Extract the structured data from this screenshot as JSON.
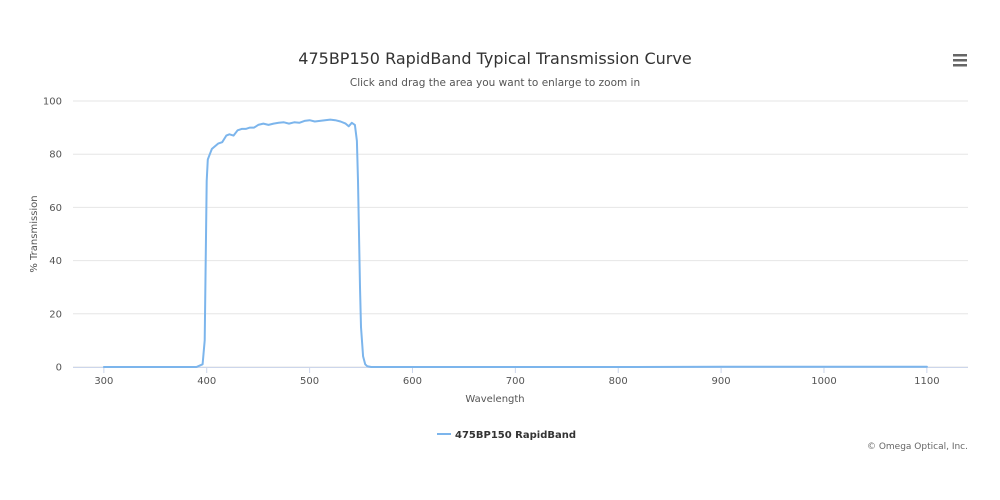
{
  "chart_data": {
    "type": "line",
    "title": "475BP150 RapidBand Typical Transmission Curve",
    "subtitle": "Click and drag the area you want to enlarge to zoom in",
    "xlabel": "Wavelength",
    "ylabel": "% Transmission",
    "xlim": [
      270,
      1140
    ],
    "ylim": [
      0,
      100
    ],
    "x_ticks": [
      300,
      400,
      500,
      600,
      700,
      800,
      900,
      1000,
      1100
    ],
    "y_ticks": [
      0,
      20,
      40,
      60,
      80,
      100
    ],
    "grid": "horizontal",
    "legend_position": "bottom-center",
    "series": [
      {
        "name": "475BP150 RapidBand",
        "color": "#7cb5ec",
        "x": [
          300,
          390,
          396,
          398,
          399,
          400,
          401,
          403,
          405,
          408,
          411,
          415,
          419,
          422,
          426,
          430,
          434,
          438,
          442,
          446,
          450,
          455,
          460,
          465,
          470,
          475,
          480,
          485,
          490,
          495,
          500,
          505,
          510,
          515,
          520,
          525,
          530,
          535,
          538,
          541,
          544,
          546,
          547,
          548,
          549,
          550,
          552,
          554,
          556,
          560,
          600,
          700,
          800,
          900,
          1000,
          1100
        ],
        "y": [
          0,
          0,
          1,
          10,
          40,
          70,
          78,
          80,
          82,
          83,
          84,
          84.5,
          87,
          87.5,
          87,
          89,
          89.5,
          89.5,
          90,
          90,
          91,
          91.5,
          91,
          91.5,
          91.8,
          92,
          91.5,
          92,
          91.8,
          92.5,
          92.8,
          92.3,
          92.5,
          92.8,
          93,
          92.8,
          92.3,
          91.5,
          90.5,
          91.8,
          91,
          85,
          70,
          50,
          30,
          15,
          4,
          1,
          0.3,
          0,
          0,
          0,
          0,
          0.1,
          0.1,
          0.1
        ]
      }
    ]
  },
  "credits": "© Omega Optical, Inc.",
  "colors": {
    "grid": "#e6e6e6",
    "axis": "#ccd6eb",
    "series": "#7cb5ec",
    "menu": "#666666"
  },
  "menu": {
    "icon": "hamburger-menu-icon"
  }
}
